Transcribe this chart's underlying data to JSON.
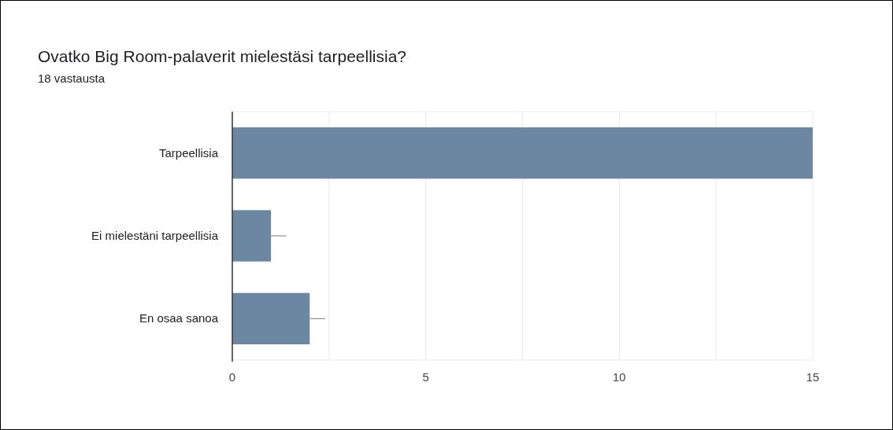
{
  "chart_data": {
    "type": "bar",
    "orientation": "horizontal",
    "title": "Ovatko Big Room-palaverit mielestäsi tarpeellisia?",
    "subtitle": "18 vastausta",
    "categories": [
      "Tarpeellisia",
      "Ei mielestäni tarpeellisia",
      "En osaa sanoa"
    ],
    "values": [
      15,
      1,
      2
    ],
    "color": "#6b87a1",
    "errors": [
      null,
      [
        1,
        1.4
      ],
      [
        2,
        2.4
      ]
    ],
    "xlim": [
      0,
      15
    ],
    "xticks": [
      0,
      {
        "value": 2.5,
        "label": null
      },
      5,
      {
        "value": 7.5,
        "label": null
      },
      10,
      {
        "value": 12.5,
        "label": null
      },
      15
    ],
    "grid": "x"
  }
}
